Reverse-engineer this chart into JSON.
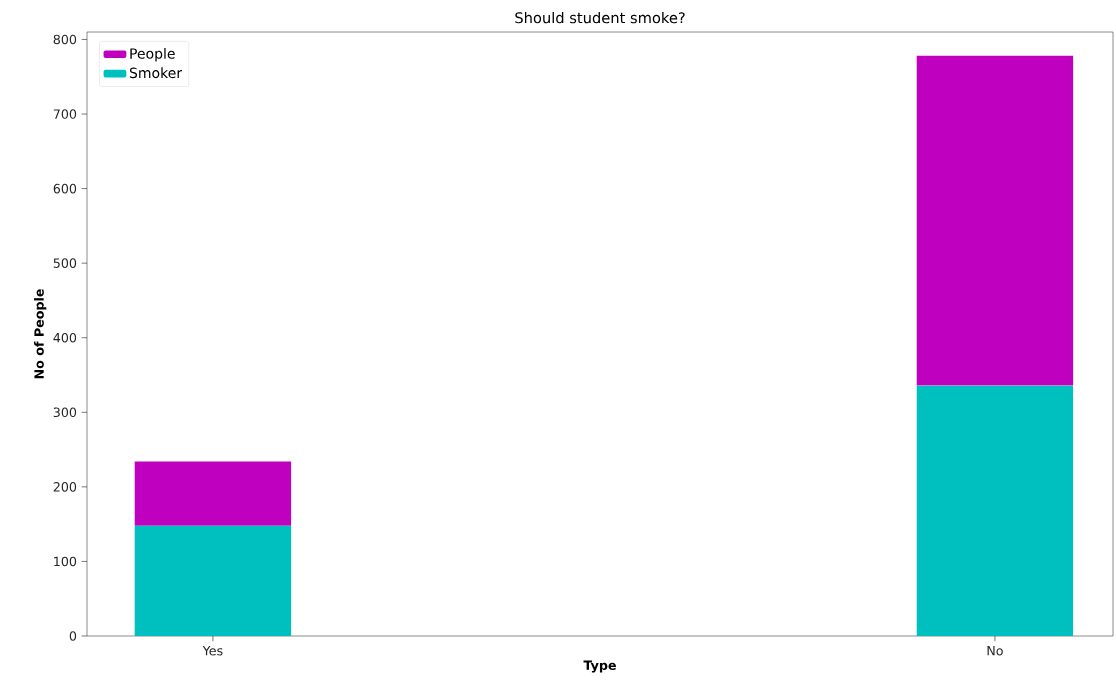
{
  "chart_data": {
    "type": "bar",
    "title": "Should student smoke?",
    "xlabel": "Type",
    "ylabel": "No of People",
    "categories": [
      "Yes",
      "No"
    ],
    "stacked": true,
    "series": [
      {
        "name": "Smoker",
        "color": "#00bfbf",
        "values": [
          148,
          336
        ]
      },
      {
        "name": "People",
        "color": "#bf00bf",
        "values": [
          86,
          442
        ]
      }
    ],
    "ylim": [
      0,
      810
    ],
    "yticks": [
      0,
      100,
      200,
      300,
      400,
      500,
      600,
      700,
      800
    ],
    "legend": "top left",
    "grid": false
  }
}
